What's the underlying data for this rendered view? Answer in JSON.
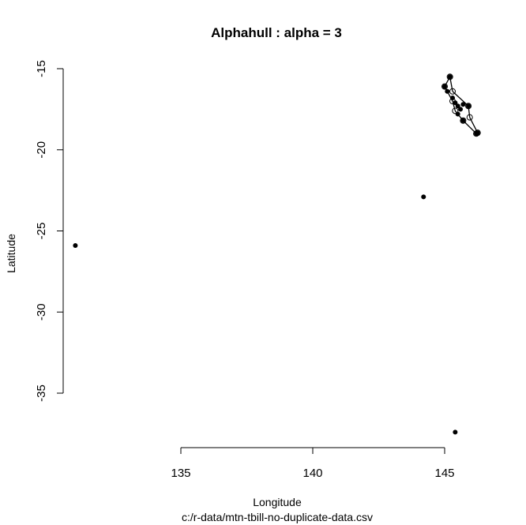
{
  "chart_data": {
    "type": "scatter",
    "title": "Alphahull : alpha =  3",
    "xlabel": "Longitude",
    "ylabel": "Latitude",
    "subtitle": "c:/r-data/mtn-tbill-no-duplicate-data.csv",
    "xlim": [
      130,
      147.5
    ],
    "ylim": [
      -38.4,
      -14.7
    ],
    "xticks": [
      135,
      140,
      145
    ],
    "yticks": [
      -15,
      -20,
      -25,
      -30,
      -35
    ],
    "grid": false,
    "legend": "none",
    "points": [
      {
        "x": 131.0,
        "y": -25.9
      },
      {
        "x": 144.2,
        "y": -22.9
      },
      {
        "x": 145.4,
        "y": -37.4
      },
      {
        "x": 145.2,
        "y": -15.5
      },
      {
        "x": 145.0,
        "y": -16.1
      },
      {
        "x": 145.1,
        "y": -16.4
      },
      {
        "x": 145.3,
        "y": -16.8
      },
      {
        "x": 145.4,
        "y": -17.1
      },
      {
        "x": 145.5,
        "y": -17.3
      },
      {
        "x": 145.6,
        "y": -17.5
      },
      {
        "x": 145.7,
        "y": -17.2
      },
      {
        "x": 145.9,
        "y": -17.3
      },
      {
        "x": 145.5,
        "y": -17.8
      },
      {
        "x": 145.7,
        "y": -18.2
      },
      {
        "x": 146.2,
        "y": -19.0
      },
      {
        "x": 146.25,
        "y": -18.95
      }
    ],
    "hull": [
      {
        "x": 145.2,
        "y": -15.5
      },
      {
        "x": 145.3,
        "y": -16.4
      },
      {
        "x": 145.9,
        "y": -17.3
      },
      {
        "x": 145.95,
        "y": -18.0
      },
      {
        "x": 146.25,
        "y": -18.95
      },
      {
        "x": 146.2,
        "y": -19.0
      },
      {
        "x": 145.7,
        "y": -18.2
      },
      {
        "x": 145.4,
        "y": -17.6
      },
      {
        "x": 145.3,
        "y": -17.0
      },
      {
        "x": 145.0,
        "y": -16.1
      }
    ]
  }
}
